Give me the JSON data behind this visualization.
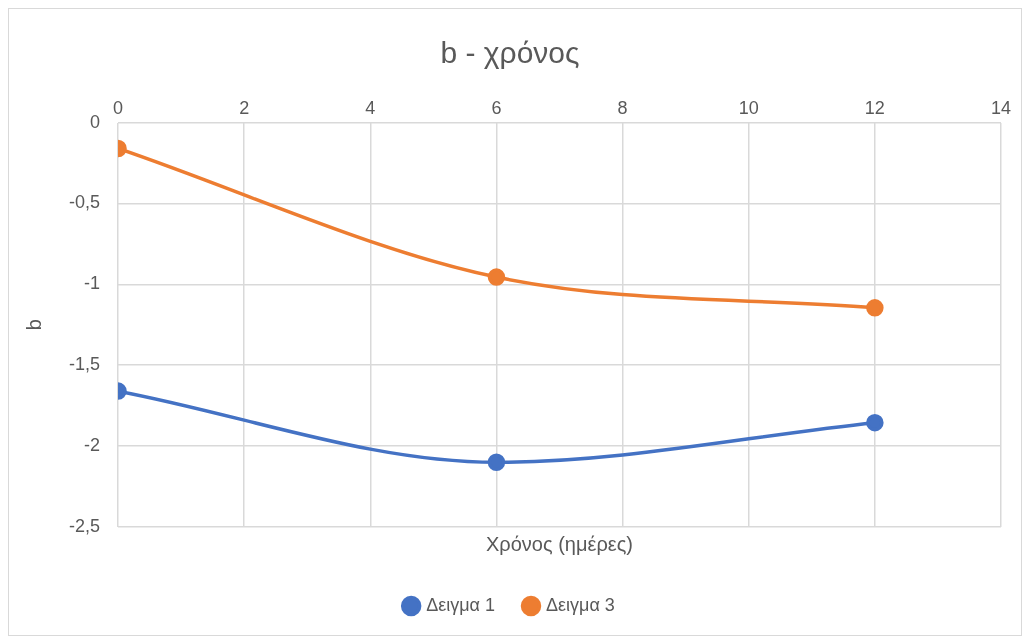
{
  "chart_data": {
    "type": "line",
    "title": "b - χρόνος",
    "xlabel": "Χρόνος (ημέρες)",
    "ylabel": "b",
    "xlim": [
      0,
      14
    ],
    "xticks": [
      0,
      2,
      4,
      6,
      8,
      10,
      12,
      14
    ],
    "ylim": [
      -2.5,
      0
    ],
    "yticks": [
      {
        "value": -2.5,
        "label": "-2,5"
      },
      -2,
      {
        "value": -1.5,
        "label": "-1,5"
      },
      -1,
      {
        "value": -0.5,
        "label": "-0,5"
      },
      0
    ],
    "x": [
      0,
      6,
      12
    ],
    "series": [
      {
        "name": "Δειγμα 1",
        "color": "#4472c4",
        "values": [
          -1.66,
          -2.1,
          -1.855
        ]
      },
      {
        "name": "Δειγμα 3",
        "color": "#ed7d31",
        "values": [
          -0.16,
          -0.955,
          -1.145
        ]
      }
    ],
    "grid": true,
    "legend": "bottom",
    "marker": "circle",
    "line_style": "solid"
  }
}
